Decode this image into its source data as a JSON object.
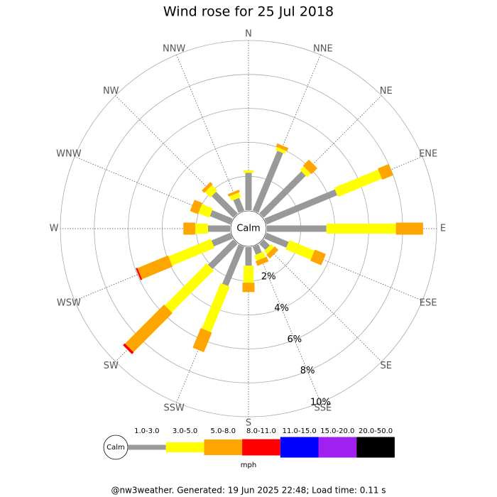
{
  "chart_data": {
    "type": "windrose",
    "title": "Wind rose for 25 Jul 2018",
    "directions": [
      "N",
      "NNE",
      "NE",
      "ENE",
      "E",
      "ESE",
      "SE",
      "SSE",
      "S",
      "SSW",
      "SW",
      "WSW",
      "W",
      "WNW",
      "NW",
      "NNW"
    ],
    "series": [
      {
        "name": "1.0-3.0",
        "color": "#999999",
        "values": [
          2.2,
          3.8,
          3.5,
          4.5,
          3.5,
          1.4,
          0.5,
          0.5,
          1.1,
          2.5,
          2.1,
          1.2,
          1.3,
          1.3,
          1.8,
          0.8
        ]
      },
      {
        "name": "3.0-5.0",
        "color": "#ffff00",
        "values": [
          0.15,
          0.2,
          0.3,
          2.8,
          4.1,
          1.6,
          0.25,
          0.35,
          1.0,
          2.9,
          3.5,
          2.7,
          0.75,
          0.7,
          0.45,
          0.3
        ]
      },
      {
        "name": "5.0-8.0",
        "color": "#ffa500",
        "values": [
          0,
          0.2,
          0.5,
          0.7,
          1.6,
          0.7,
          0.3,
          0.3,
          0.55,
          1.25,
          3.25,
          1.95,
          0.7,
          0.5,
          0.2,
          0.15
        ]
      },
      {
        "name": "8.0-11.0",
        "color": "#ff0000",
        "values": [
          0,
          0,
          0,
          0,
          0,
          0,
          0,
          0,
          0,
          0,
          0.15,
          0.1,
          0,
          0,
          0,
          0
        ]
      },
      {
        "name": "11.0-15.0",
        "color": "#0000ff",
        "values": [
          0,
          0,
          0,
          0,
          0,
          0,
          0,
          0,
          0,
          0,
          0,
          0,
          0,
          0,
          0,
          0
        ]
      },
      {
        "name": "15.0-20.0",
        "color": "#a020f0",
        "values": [
          0,
          0,
          0,
          0,
          0,
          0,
          0,
          0,
          0,
          0,
          0,
          0,
          0,
          0,
          0,
          0
        ]
      },
      {
        "name": "20.0-50.0",
        "color": "#000000",
        "values": [
          0,
          0,
          0,
          0,
          0,
          0,
          0,
          0,
          0,
          0,
          0,
          0,
          0,
          0,
          0,
          0
        ]
      }
    ],
    "rlim": [
      0,
      10
    ],
    "rticks": [
      {
        "value": 2,
        "label": "2%"
      },
      {
        "value": 4,
        "label": "4%"
      },
      {
        "value": 6,
        "label": "6%"
      },
      {
        "value": 8,
        "label": "8%"
      },
      {
        "value": 10,
        "label": "10%"
      }
    ],
    "calm_label": "Calm",
    "legend_unit": "mph",
    "footer": "@nw3weather. Generated: 19 Jun 2025 22:48; Load time: 0.11 s"
  }
}
